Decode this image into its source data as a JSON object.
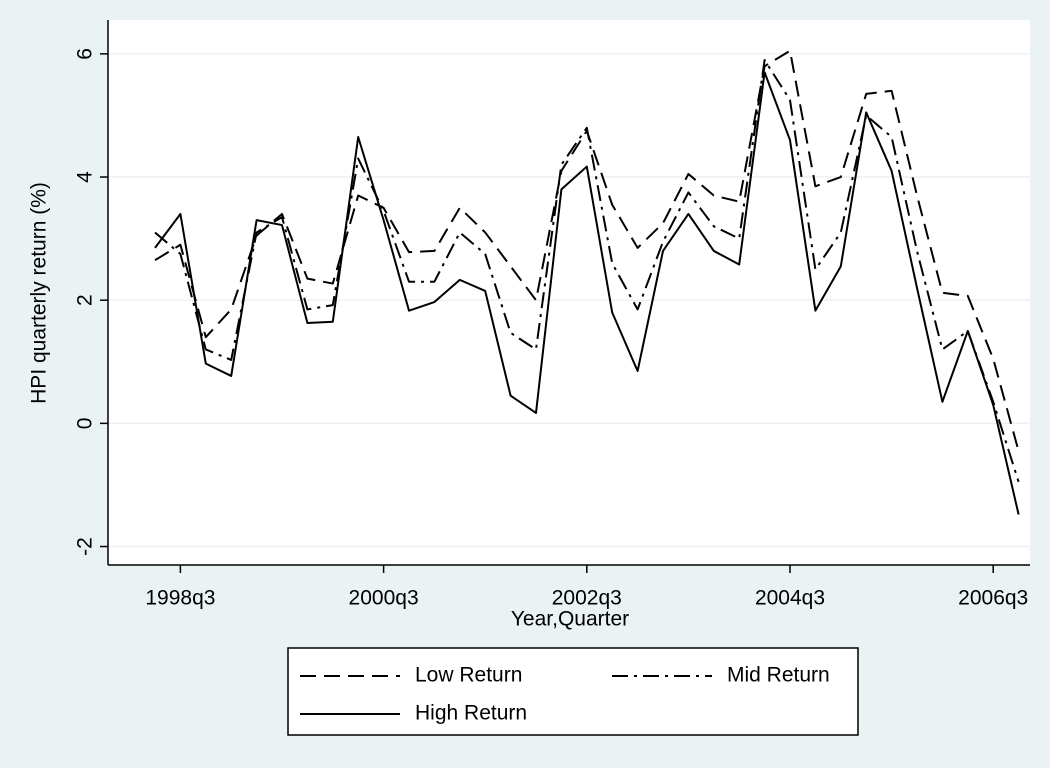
{
  "chart_data": {
    "type": "line",
    "y_label": "HPI quarterly return (%)",
    "x_label": "Year,Quarter",
    "categories": [
      null,
      "1998q3",
      null,
      null,
      null,
      null,
      null,
      null,
      null,
      "2000q3",
      null,
      null,
      null,
      null,
      null,
      null,
      null,
      "2002q3",
      null,
      null,
      null,
      null,
      null,
      null,
      null,
      "2004q3",
      null,
      null,
      null,
      null,
      null,
      null,
      null,
      "2006q3",
      null
    ],
    "ylim": [
      -2.3,
      6.55
    ],
    "yticks": [
      -2,
      0,
      2,
      4,
      6
    ],
    "grid": true,
    "legend": "bottom",
    "series": [
      {
        "name": "Low Return",
        "color": "#000000",
        "dash": "dashed",
        "values": [
          2.65,
          2.9,
          1.4,
          1.85,
          3.05,
          3.4,
          2.35,
          2.27,
          3.7,
          3.5,
          2.78,
          2.8,
          3.5,
          3.1,
          2.55,
          2.0,
          4.1,
          4.75,
          3.55,
          2.85,
          3.25,
          4.05,
          3.7,
          3.6,
          5.8,
          6.05,
          3.85,
          4.0,
          5.35,
          5.4,
          3.7,
          2.12,
          2.07,
          1.05,
          -0.45
        ]
      },
      {
        "name": "Mid Return",
        "color": "#000000",
        "dash": "dashdot",
        "values": [
          3.1,
          2.75,
          1.2,
          1.03,
          3.1,
          3.35,
          1.85,
          1.92,
          4.3,
          3.45,
          2.3,
          2.3,
          3.1,
          2.75,
          1.47,
          1.2,
          4.2,
          4.8,
          2.6,
          1.85,
          2.95,
          3.75,
          3.2,
          3.0,
          5.9,
          5.25,
          2.5,
          3.1,
          5.0,
          4.65,
          2.8,
          1.2,
          1.5,
          0.35,
          -0.95
        ]
      },
      {
        "name": "High Return",
        "color": "#000000",
        "dash": "solid",
        "values": [
          2.85,
          3.4,
          0.97,
          0.77,
          3.3,
          3.22,
          1.63,
          1.65,
          4.65,
          3.3,
          1.83,
          1.97,
          2.33,
          2.15,
          0.45,
          0.17,
          3.8,
          4.17,
          1.8,
          0.85,
          2.8,
          3.4,
          2.8,
          2.58,
          5.7,
          4.6,
          1.83,
          2.55,
          5.05,
          4.1,
          2.2,
          0.35,
          1.5,
          0.3,
          -1.48
        ]
      }
    ]
  }
}
